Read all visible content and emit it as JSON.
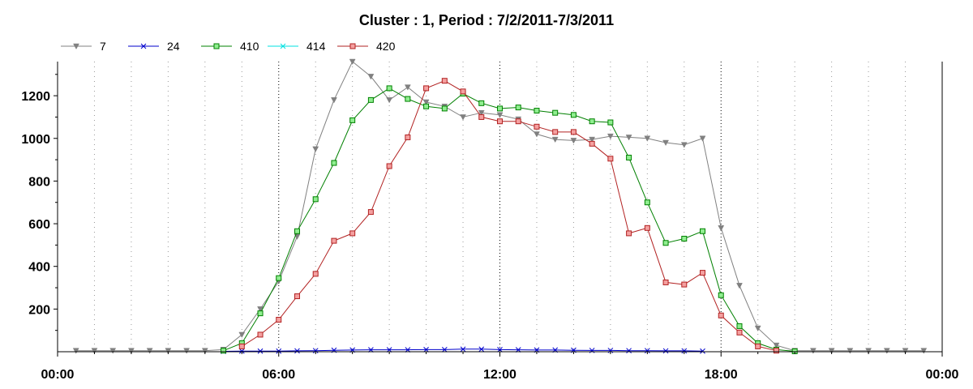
{
  "chart_data": {
    "type": "line",
    "title": "Cluster : 1, Period : 7/2/2011-7/3/2011",
    "xlabel": "",
    "ylabel": "",
    "x_range_hours": [
      0,
      24
    ],
    "ylim": [
      0,
      1360
    ],
    "x_ticks": [
      {
        "hour": 0,
        "label": "00:00"
      },
      {
        "hour": 6,
        "label": "06:00"
      },
      {
        "hour": 12,
        "label": "12:00"
      },
      {
        "hour": 18,
        "label": "18:00"
      },
      {
        "hour": 24,
        "label": "00:00"
      }
    ],
    "y_ticks": [
      200,
      400,
      600,
      800,
      1000,
      1200
    ],
    "grid": true,
    "legend_position": "top-left",
    "series": [
      {
        "name": "7",
        "color": "#808080",
        "marker": "triangle-down",
        "x": [
          0.5,
          1.0,
          1.5,
          2.0,
          2.5,
          3.0,
          3.5,
          4.0,
          4.5,
          5.0,
          5.5,
          6.0,
          6.5,
          7.0,
          7.5,
          8.0,
          8.5,
          9.0,
          9.5,
          10.0,
          10.5,
          11.0,
          11.5,
          12.0,
          12.5,
          13.0,
          13.5,
          14.0,
          14.5,
          15.0,
          15.5,
          16.0,
          16.5,
          17.0,
          17.5,
          18.0,
          18.5,
          19.0,
          19.5,
          20.0,
          20.5,
          21.0,
          21.5,
          22.0,
          22.5,
          23.0,
          23.5
        ],
        "y": [
          5,
          5,
          5,
          5,
          5,
          5,
          5,
          5,
          10,
          80,
          200,
          330,
          540,
          950,
          1180,
          1360,
          1290,
          1180,
          1240,
          1170,
          1150,
          1100,
          1120,
          1110,
          1090,
          1020,
          995,
          990,
          995,
          1010,
          1005,
          1000,
          980,
          970,
          1000,
          580,
          310,
          110,
          30,
          5,
          5,
          5,
          5,
          5,
          5,
          5,
          5
        ]
      },
      {
        "name": "24",
        "color": "#0000cc",
        "marker": "x",
        "x": [
          4.5,
          5.0,
          5.5,
          6.0,
          6.5,
          7.0,
          7.5,
          8.0,
          8.5,
          9.0,
          9.5,
          10.0,
          10.5,
          11.0,
          11.5,
          12.0,
          12.5,
          13.0,
          13.5,
          14.0,
          14.5,
          15.0,
          15.5,
          16.0,
          16.5,
          17.0,
          17.5
        ],
        "y": [
          2,
          3,
          3,
          3,
          4,
          5,
          7,
          8,
          9,
          9,
          9,
          10,
          10,
          12,
          12,
          10,
          9,
          8,
          8,
          7,
          6,
          6,
          5,
          5,
          4,
          4,
          3
        ]
      },
      {
        "name": "410",
        "color": "#008000",
        "marker": "square",
        "fill": "#90ee90",
        "x": [
          4.5,
          5.0,
          5.5,
          6.0,
          6.5,
          7.0,
          7.5,
          8.0,
          8.5,
          9.0,
          9.5,
          10.0,
          10.5,
          11.0,
          11.5,
          12.0,
          12.5,
          13.0,
          13.5,
          14.0,
          14.5,
          15.0,
          15.5,
          16.0,
          16.5,
          17.0,
          17.5,
          18.0,
          18.5,
          19.0,
          19.5,
          20.0
        ],
        "y": [
          5,
          40,
          180,
          345,
          565,
          715,
          885,
          1085,
          1180,
          1235,
          1185,
          1150,
          1140,
          1210,
          1165,
          1140,
          1145,
          1130,
          1120,
          1110,
          1080,
          1075,
          910,
          700,
          510,
          530,
          565,
          265,
          120,
          40,
          10,
          2
        ]
      },
      {
        "name": "414",
        "color": "#00e0e0",
        "marker": "x",
        "x": [],
        "y": []
      },
      {
        "name": "420",
        "color": "#b22222",
        "marker": "square",
        "fill": "#f4a0a0",
        "x": [
          5.0,
          5.5,
          6.0,
          6.5,
          7.0,
          7.5,
          8.0,
          8.5,
          9.0,
          9.5,
          10.0,
          10.5,
          11.0,
          11.5,
          12.0,
          12.5,
          13.0,
          13.5,
          14.0,
          14.5,
          15.0,
          15.5,
          16.0,
          16.5,
          17.0,
          17.5,
          18.0,
          18.5,
          19.0,
          19.5
        ],
        "y": [
          25,
          80,
          150,
          260,
          365,
          520,
          555,
          655,
          870,
          1005,
          1235,
          1270,
          1220,
          1100,
          1080,
          1080,
          1055,
          1030,
          1030,
          975,
          905,
          555,
          580,
          325,
          315,
          370,
          170,
          90,
          25,
          5
        ]
      }
    ]
  }
}
